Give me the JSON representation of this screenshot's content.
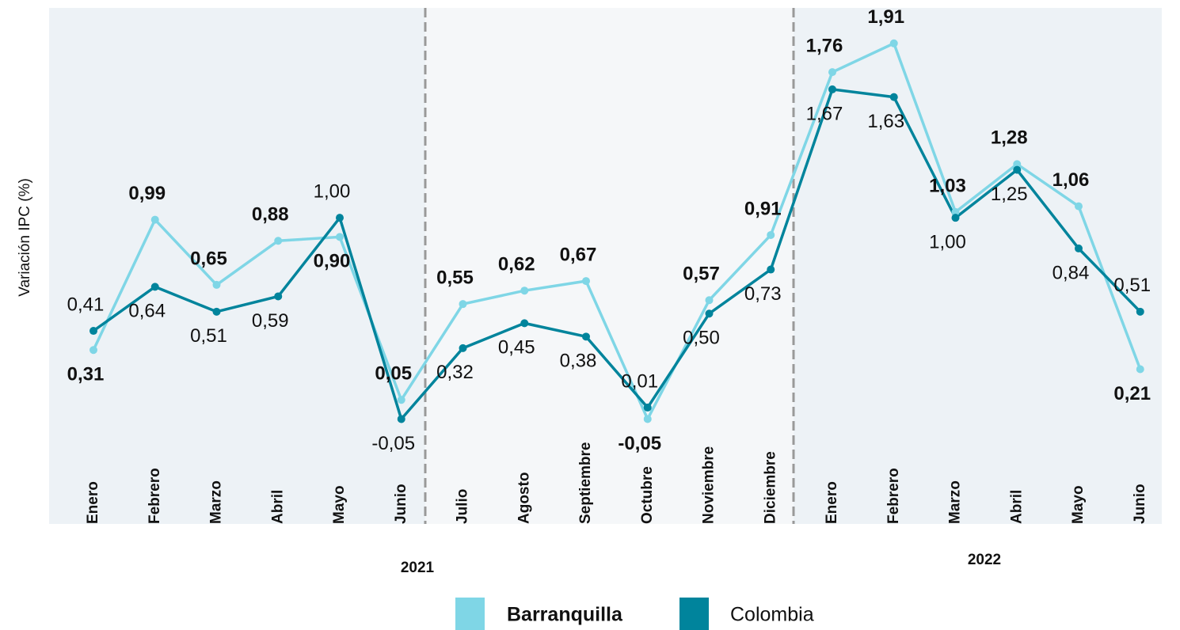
{
  "chart_data": {
    "type": "line",
    "y_axis_label": "Variación IPC (%)",
    "categories": [
      "Enero",
      "Febrero",
      "Marzo",
      "Abril",
      "Mayo",
      "Junio",
      "Julio",
      "Agosto",
      "Septiembre",
      "Octubre",
      "Noviembre",
      "Diciembre",
      "Enero",
      "Febrero",
      "Marzo",
      "Abril",
      "Mayo",
      "Junio"
    ],
    "years": [
      "2021",
      "2022"
    ],
    "ylim": [
      -0.3,
      2.0
    ],
    "series": [
      {
        "name": "Barranquilla",
        "color": "#7fd6e6",
        "values": [
          0.31,
          0.99,
          0.65,
          0.88,
          0.9,
          0.05,
          0.55,
          0.62,
          0.67,
          -0.05,
          0.57,
          0.91,
          1.76,
          1.91,
          1.03,
          1.28,
          1.06,
          0.21
        ],
        "value_labels": [
          "0,31",
          "0,99",
          "0,65",
          "0,88",
          "0,90",
          "0,05",
          "0,55",
          "0,62",
          "0,67",
          "-0,05",
          "0,57",
          "0,91",
          "1,76",
          "1,91",
          "1,03",
          "1,28",
          "1,06",
          "0,21"
        ]
      },
      {
        "name": "Colombia",
        "color": "#00849c",
        "values": [
          0.41,
          0.64,
          0.51,
          0.59,
          1.0,
          -0.05,
          0.32,
          0.45,
          0.38,
          0.01,
          0.5,
          0.73,
          1.67,
          1.63,
          1.0,
          1.25,
          0.84,
          0.51
        ],
        "value_labels": [
          "0,41",
          "0,64",
          "0,51",
          "0,59",
          "1,00",
          "-0,05",
          "0,32",
          "0,45",
          "0,38",
          "0,01",
          "0,50",
          "0,73",
          "1,67",
          "1,63",
          "1,00",
          "1,25",
          "0,84",
          "0,51"
        ]
      }
    ]
  }
}
